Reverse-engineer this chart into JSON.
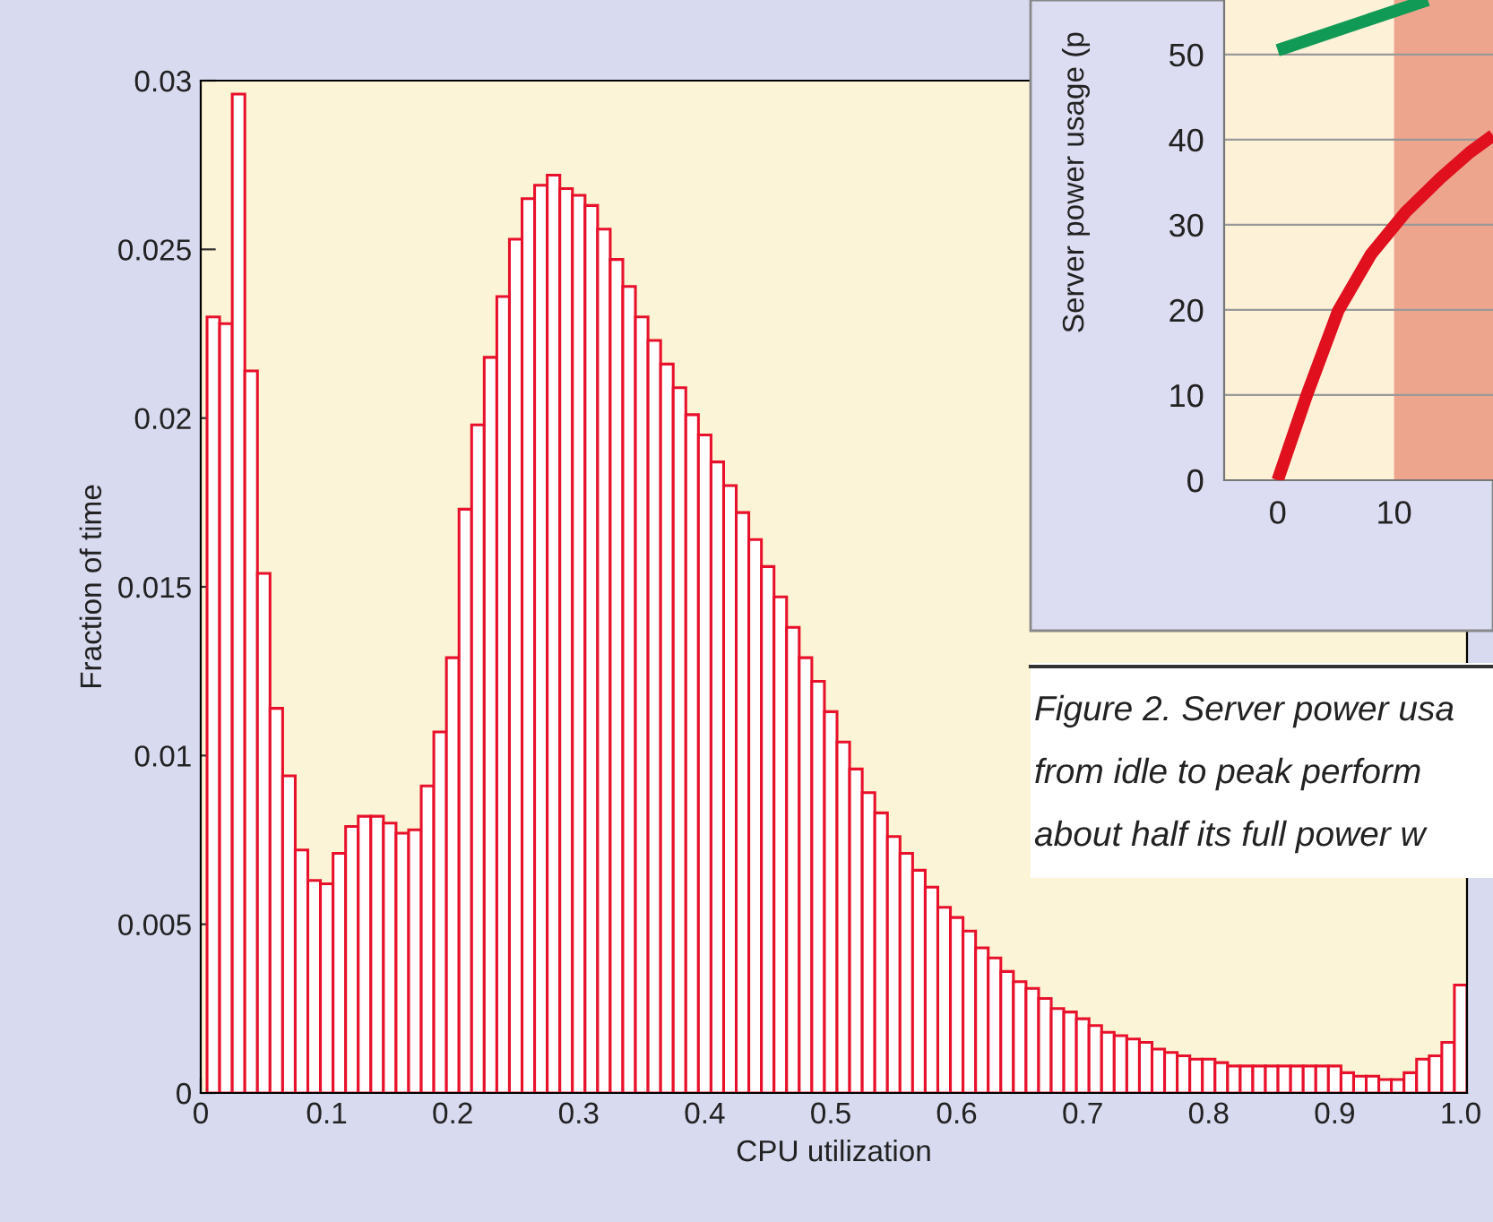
{
  "chart_data": [
    {
      "type": "histogram",
      "xlabel": "CPU utilization",
      "ylabel": "Fraction of time",
      "bins": [
        0.005,
        0.015,
        0.025,
        0.035,
        0.045,
        0.055,
        0.065,
        0.075,
        0.085,
        0.095,
        0.105,
        0.115,
        0.125,
        0.135,
        0.145,
        0.155,
        0.165,
        0.175,
        0.185,
        0.195,
        0.205,
        0.215,
        0.225,
        0.235,
        0.245,
        0.255,
        0.265,
        0.275,
        0.285,
        0.295,
        0.305,
        0.315,
        0.325,
        0.335,
        0.345,
        0.355,
        0.365,
        0.375,
        0.385,
        0.395,
        0.405,
        0.415,
        0.425,
        0.435,
        0.445,
        0.455,
        0.465,
        0.475,
        0.485,
        0.495,
        0.505,
        0.515,
        0.525,
        0.535,
        0.545,
        0.555,
        0.565,
        0.575,
        0.585,
        0.595,
        0.605,
        0.615,
        0.625,
        0.635,
        0.645,
        0.655,
        0.665,
        0.675,
        0.685,
        0.695,
        0.705,
        0.715,
        0.725,
        0.735,
        0.745,
        0.755,
        0.765,
        0.775,
        0.785,
        0.795,
        0.805,
        0.815,
        0.825,
        0.835,
        0.845,
        0.855,
        0.865,
        0.875,
        0.885,
        0.895,
        0.905,
        0.915,
        0.925,
        0.935,
        0.945,
        0.955,
        0.965,
        0.975,
        0.985,
        0.995,
        1.005
      ],
      "values": [
        0.023,
        0.0228,
        0.0296,
        0.0214,
        0.0154,
        0.0114,
        0.0094,
        0.0072,
        0.0063,
        0.0062,
        0.0071,
        0.0079,
        0.0082,
        0.0082,
        0.008,
        0.0077,
        0.0078,
        0.0091,
        0.0107,
        0.0129,
        0.0173,
        0.0198,
        0.0218,
        0.0236,
        0.0253,
        0.0265,
        0.0269,
        0.0272,
        0.0268,
        0.0266,
        0.0263,
        0.0256,
        0.0247,
        0.0239,
        0.023,
        0.0223,
        0.0216,
        0.0209,
        0.0201,
        0.0195,
        0.0187,
        0.018,
        0.0172,
        0.0164,
        0.0156,
        0.0147,
        0.0138,
        0.0129,
        0.0122,
        0.0113,
        0.0104,
        0.0096,
        0.0089,
        0.0083,
        0.0076,
        0.0071,
        0.0066,
        0.0061,
        0.0055,
        0.0052,
        0.0048,
        0.0043,
        0.004,
        0.0036,
        0.0033,
        0.0031,
        0.0028,
        0.0025,
        0.0024,
        0.0022,
        0.002,
        0.0018,
        0.0017,
        0.0016,
        0.0015,
        0.0013,
        0.0012,
        0.0011,
        0.001,
        0.001,
        0.0009,
        0.0008,
        0.0008,
        0.0008,
        0.0008,
        0.0008,
        0.0008,
        0.0008,
        0.0008,
        0.0008,
        0.0006,
        0.0005,
        0.0005,
        0.0004,
        0.0004,
        0.0006,
        0.001,
        0.0011,
        0.0015,
        0.0032
      ],
      "color": "#e8102a",
      "xlim": [
        0,
        1.005
      ],
      "ylim": [
        0,
        0.03
      ],
      "xticks": [
        0,
        0.1,
        0.2,
        0.3,
        0.4,
        0.5,
        0.6,
        0.7,
        0.8,
        0.9,
        {
          "value": 1,
          "label": "1.0"
        }
      ],
      "yticks": [
        0,
        0.005,
        0.01,
        0.015,
        0.02,
        0.025,
        0.03
      ],
      "grid": false,
      "legend": false
    },
    {
      "type": "line",
      "ylabel": "Server power usage (p",
      "series": [
        {
          "color": "#119a55",
          "x": [
            0,
            12.9
          ],
          "values": [
            50.5,
            56.4
          ]
        },
        {
          "color": "#e0101e",
          "x": [
            0,
            2.5,
            5.2,
            8,
            11,
            14,
            16.5,
            18.5
          ],
          "values": [
            0,
            10,
            19.9,
            26.5,
            31.5,
            35.5,
            38.5,
            40.5
          ]
        }
      ],
      "bands": [
        {
          "axis": "x",
          "from": 10,
          "to": 18.5,
          "color": "#eda58e"
        }
      ],
      "xlim": [
        -4.6,
        18.5
      ],
      "ylim": [
        0,
        56.4
      ],
      "xticks": [
        0,
        10
      ],
      "yticks": [
        0,
        10,
        20,
        30,
        40,
        50
      ],
      "grid": "y",
      "legend": false,
      "annotations": [
        "Figure 2. Server power usa",
        "from idle to peak perform",
        "about half its full power w"
      ]
    }
  ]
}
